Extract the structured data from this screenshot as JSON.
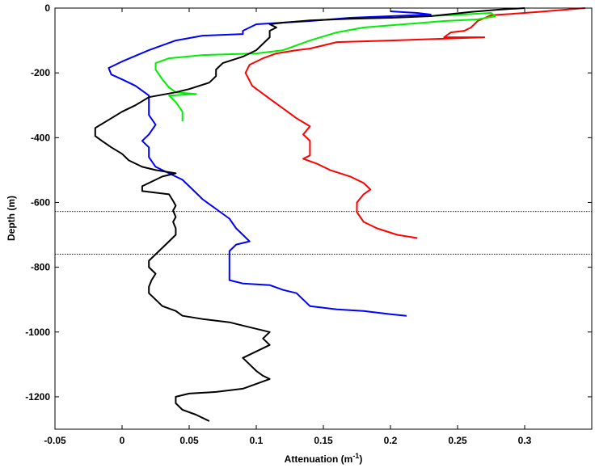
{
  "chart_data": {
    "type": "line",
    "title": "",
    "xlabel": "Attenuation (m",
    "xlabel_sup": "-1",
    "xlabel_close": ")",
    "ylabel": "Depth (m)",
    "xlim": [
      -0.05,
      0.35
    ],
    "ylim": [
      -1300,
      0
    ],
    "xticks": [
      -0.05,
      0,
      0.05,
      0.1,
      0.15,
      0.2,
      0.25,
      0.3
    ],
    "xtick_labels": [
      "-0.05",
      "0",
      "0.05",
      "0.1",
      "0.15",
      "0.2",
      "0.25",
      "0.3"
    ],
    "yticks": [
      0,
      -200,
      -400,
      -600,
      -800,
      -1000,
      -1200
    ],
    "ytick_labels": [
      "0",
      "-200",
      "-400",
      "-600",
      "-800",
      "-1000",
      "-1200"
    ],
    "grid": false,
    "reference_lines": [
      {
        "depth": -628,
        "style": "dotted",
        "color": "#000000"
      },
      {
        "depth": -760,
        "style": "dotted",
        "color": "#000000"
      }
    ],
    "series": [
      {
        "color": "#ff0000",
        "points": [
          [
            0.345,
            0
          ],
          [
            0.33,
            -5
          ],
          [
            0.31,
            -12
          ],
          [
            0.29,
            -18
          ],
          [
            0.275,
            -22
          ],
          [
            0.265,
            -40
          ],
          [
            0.26,
            -60
          ],
          [
            0.255,
            -70
          ],
          [
            0.245,
            -75
          ],
          [
            0.24,
            -90
          ],
          [
            0.27,
            -90
          ],
          [
            0.235,
            -95
          ],
          [
            0.2,
            -100
          ],
          [
            0.16,
            -105
          ],
          [
            0.15,
            -115
          ],
          [
            0.14,
            -125
          ],
          [
            0.13,
            -130
          ],
          [
            0.115,
            -140
          ],
          [
            0.105,
            -155
          ],
          [
            0.095,
            -175
          ],
          [
            0.092,
            -200
          ],
          [
            0.097,
            -240
          ],
          [
            0.11,
            -280
          ],
          [
            0.12,
            -310
          ],
          [
            0.13,
            -340
          ],
          [
            0.14,
            -365
          ],
          [
            0.135,
            -390
          ],
          [
            0.14,
            -410
          ],
          [
            0.14,
            -440
          ],
          [
            0.14,
            -455
          ],
          [
            0.135,
            -465
          ],
          [
            0.145,
            -480
          ],
          [
            0.155,
            -500
          ],
          [
            0.17,
            -520
          ],
          [
            0.18,
            -540
          ],
          [
            0.185,
            -560
          ],
          [
            0.18,
            -575
          ],
          [
            0.175,
            -600
          ],
          [
            0.175,
            -630
          ],
          [
            0.18,
            -660
          ],
          [
            0.19,
            -680
          ],
          [
            0.205,
            -700
          ],
          [
            0.22,
            -710
          ]
        ]
      },
      {
        "color": "#00ee00",
        "points": [
          [
            0.225,
            -25
          ],
          [
            0.245,
            -22
          ],
          [
            0.275,
            -15
          ],
          [
            0.278,
            -25
          ],
          [
            0.265,
            -35
          ],
          [
            0.24,
            -40
          ],
          [
            0.21,
            -50
          ],
          [
            0.18,
            -60
          ],
          [
            0.16,
            -75
          ],
          [
            0.14,
            -100
          ],
          [
            0.12,
            -130
          ],
          [
            0.1,
            -140
          ],
          [
            0.06,
            -145
          ],
          [
            0.035,
            -155
          ],
          [
            0.025,
            -170
          ],
          [
            0.025,
            -190
          ],
          [
            0.03,
            -220
          ],
          [
            0.035,
            -245
          ],
          [
            0.04,
            -260
          ],
          [
            0.055,
            -265
          ],
          [
            0.035,
            -270
          ],
          [
            0.04,
            -290
          ],
          [
            0.045,
            -320
          ],
          [
            0.045,
            -350
          ]
        ]
      },
      {
        "color": "#0000ff",
        "points": [
          [
            0.2,
            -10
          ],
          [
            0.22,
            -15
          ],
          [
            0.23,
            -20
          ],
          [
            0.2,
            -25
          ],
          [
            0.17,
            -30
          ],
          [
            0.14,
            -40
          ],
          [
            0.12,
            -45
          ],
          [
            0.1,
            -50
          ],
          [
            0.09,
            -70
          ],
          [
            0.09,
            -80
          ],
          [
            0.06,
            -85
          ],
          [
            0.04,
            -100
          ],
          [
            0.02,
            -130
          ],
          [
            0.0,
            -165
          ],
          [
            -0.01,
            -185
          ],
          [
            -0.008,
            -205
          ],
          [
            0.0,
            -220
          ],
          [
            0.01,
            -240
          ],
          [
            0.015,
            -255
          ],
          [
            0.02,
            -270
          ],
          [
            0.02,
            -290
          ],
          [
            0.02,
            -310
          ],
          [
            0.02,
            -330
          ],
          [
            0.025,
            -360
          ],
          [
            0.02,
            -390
          ],
          [
            0.015,
            -410
          ],
          [
            0.02,
            -430
          ],
          [
            0.02,
            -460
          ],
          [
            0.025,
            -490
          ],
          [
            0.035,
            -510
          ],
          [
            0.045,
            -530
          ],
          [
            0.05,
            -550
          ],
          [
            0.055,
            -570
          ],
          [
            0.06,
            -590
          ],
          [
            0.07,
            -620
          ],
          [
            0.08,
            -650
          ],
          [
            0.085,
            -680
          ],
          [
            0.09,
            -700
          ],
          [
            0.095,
            -720
          ],
          [
            0.085,
            -730
          ],
          [
            0.08,
            -750
          ],
          [
            0.08,
            -780
          ],
          [
            0.08,
            -810
          ],
          [
            0.08,
            -840
          ],
          [
            0.09,
            -850
          ],
          [
            0.11,
            -855
          ],
          [
            0.12,
            -870
          ],
          [
            0.13,
            -880
          ],
          [
            0.135,
            -900
          ],
          [
            0.14,
            -920
          ],
          [
            0.16,
            -930
          ],
          [
            0.18,
            -935
          ],
          [
            0.2,
            -945
          ],
          [
            0.212,
            -950
          ]
        ]
      },
      {
        "color": "#000000",
        "points": [
          [
            0.3,
            0
          ],
          [
            0.28,
            -5
          ],
          [
            0.26,
            -12
          ],
          [
            0.23,
            -25
          ],
          [
            0.2,
            -30
          ],
          [
            0.17,
            -33
          ],
          [
            0.14,
            -38
          ],
          [
            0.12,
            -45
          ],
          [
            0.11,
            -50
          ],
          [
            0.115,
            -60
          ],
          [
            0.11,
            -70
          ],
          [
            0.11,
            -90
          ],
          [
            0.105,
            -110
          ],
          [
            0.1,
            -130
          ],
          [
            0.09,
            -150
          ],
          [
            0.075,
            -170
          ],
          [
            0.07,
            -190
          ],
          [
            0.07,
            -210
          ],
          [
            0.065,
            -230
          ],
          [
            0.05,
            -250
          ],
          [
            0.04,
            -260
          ],
          [
            0.02,
            -275
          ],
          [
            0.01,
            -300
          ],
          [
            0.0,
            -320
          ],
          [
            -0.01,
            -345
          ],
          [
            -0.02,
            -370
          ],
          [
            -0.02,
            -395
          ],
          [
            -0.015,
            -410
          ],
          [
            -0.008,
            -430
          ],
          [
            0.0,
            -450
          ],
          [
            0.005,
            -470
          ],
          [
            0.015,
            -490
          ],
          [
            0.025,
            -500
          ],
          [
            0.04,
            -510
          ],
          [
            0.03,
            -520
          ],
          [
            0.025,
            -530
          ],
          [
            0.015,
            -550
          ],
          [
            0.015,
            -565
          ],
          [
            0.025,
            -570
          ],
          [
            0.035,
            -575
          ],
          [
            0.038,
            -595
          ],
          [
            0.04,
            -610
          ],
          [
            0.038,
            -625
          ],
          [
            0.04,
            -645
          ],
          [
            0.038,
            -660
          ],
          [
            0.04,
            -680
          ],
          [
            0.04,
            -700
          ],
          [
            0.035,
            -720
          ],
          [
            0.03,
            -740
          ],
          [
            0.025,
            -760
          ],
          [
            0.02,
            -780
          ],
          [
            0.02,
            -800
          ],
          [
            0.025,
            -820
          ],
          [
            0.022,
            -840
          ],
          [
            0.02,
            -860
          ],
          [
            0.02,
            -880
          ],
          [
            0.025,
            -900
          ],
          [
            0.03,
            -920
          ],
          [
            0.04,
            -935
          ],
          [
            0.045,
            -950
          ],
          [
            0.06,
            -960
          ],
          [
            0.08,
            -970
          ],
          [
            0.09,
            -980
          ],
          [
            0.1,
            -990
          ],
          [
            0.11,
            -1000
          ],
          [
            0.105,
            -1020
          ],
          [
            0.11,
            -1040
          ],
          [
            0.1,
            -1060
          ],
          [
            0.09,
            -1080
          ],
          [
            0.095,
            -1100
          ],
          [
            0.1,
            -1120
          ],
          [
            0.105,
            -1135
          ],
          [
            0.11,
            -1145
          ],
          [
            0.1,
            -1160
          ],
          [
            0.09,
            -1175
          ],
          [
            0.07,
            -1185
          ],
          [
            0.05,
            -1190
          ],
          [
            0.04,
            -1200
          ],
          [
            0.04,
            -1220
          ],
          [
            0.045,
            -1240
          ],
          [
            0.055,
            -1255
          ],
          [
            0.065,
            -1275
          ]
        ]
      }
    ]
  }
}
